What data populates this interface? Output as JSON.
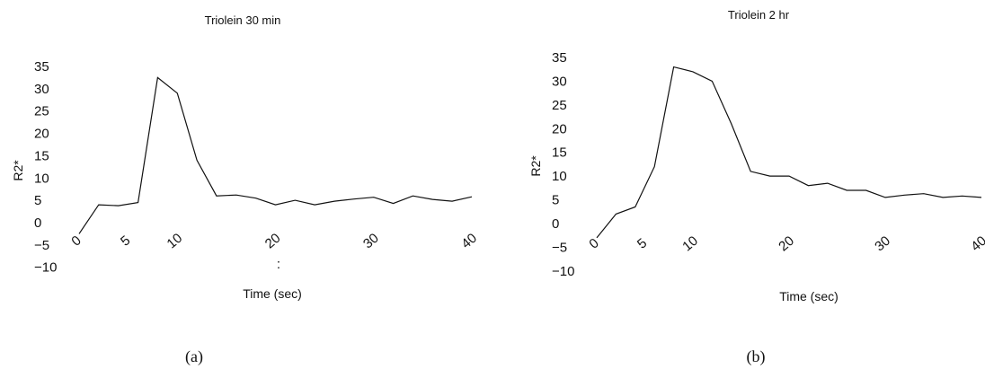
{
  "chart_data": [
    {
      "type": "line",
      "panel_label": "(a)",
      "title": "Triolein 30 min",
      "xlabel": "Time (sec)",
      "ylabel": "R2*",
      "ylim": [
        -10,
        35
      ],
      "xlim": [
        0,
        40
      ],
      "y_ticks": [
        "35",
        "30",
        "25",
        "20",
        "15",
        "10",
        "5",
        "0",
        "−5",
        "−10"
      ],
      "x_ticks": [
        "0",
        "5",
        "10",
        "20",
        "30",
        "40"
      ],
      "grid": false,
      "legend": "none",
      "stray_marks": [
        ":"
      ],
      "series": [
        {
          "x": [
            0,
            2,
            4,
            6,
            8,
            10,
            12,
            14,
            16,
            18,
            20,
            22,
            24,
            26,
            28,
            30,
            32,
            34,
            36,
            38,
            40
          ],
          "y": [
            -2.5,
            4,
            3.8,
            4.5,
            32.5,
            29,
            14,
            6,
            6.2,
            5.5,
            4,
            5,
            4,
            4.8,
            5.3,
            5.7,
            4.3,
            6,
            5.2,
            4.8,
            5.8
          ]
        }
      ]
    },
    {
      "type": "line",
      "panel_label": "(b)",
      "title": "Triolein 2 hr",
      "xlabel": "Time (sec)",
      "ylabel": "R2*",
      "ylim": [
        -10,
        35
      ],
      "xlim": [
        0,
        40
      ],
      "y_ticks": [
        "35",
        "30",
        "25",
        "20",
        "15",
        "10",
        "5",
        "0",
        "−5",
        "−10"
      ],
      "x_ticks": [
        "0",
        "5",
        "10",
        "20",
        "30",
        "40"
      ],
      "grid": false,
      "legend": "none",
      "series": [
        {
          "x": [
            0,
            2,
            4,
            6,
            8,
            10,
            12,
            14,
            16,
            18,
            20,
            22,
            24,
            26,
            28,
            30,
            32,
            34,
            36,
            38,
            40
          ],
          "y": [
            -3,
            2,
            3.5,
            12,
            33,
            32,
            30,
            21,
            11,
            10,
            10,
            8,
            8.5,
            7,
            7,
            5.5,
            6,
            6.3,
            5.5,
            5.8,
            5.5
          ]
        }
      ]
    }
  ]
}
